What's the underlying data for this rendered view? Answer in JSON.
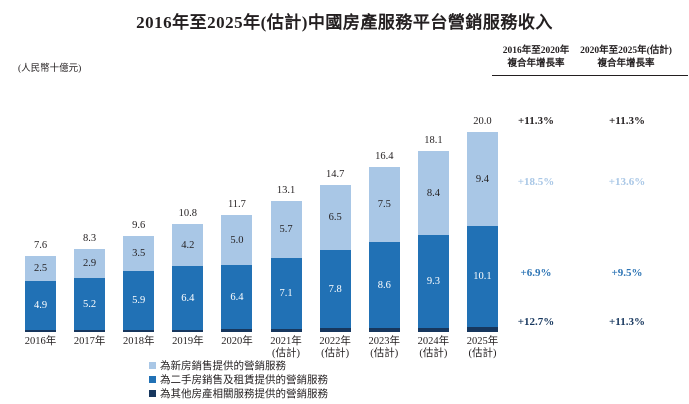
{
  "title": "2016年至2025年(估計)中國房產服務平台營銷服務收入",
  "unit_label": "(人民幣十億元)",
  "cagr_table": {
    "columns": [
      {
        "line1": "2016年至2020年",
        "line2": "複合年增長率"
      },
      {
        "line1": "2020年至2025年(估計)",
        "line2": "複合年增長率"
      }
    ],
    "rows": [
      {
        "name": "total",
        "values": [
          "+11.3%",
          "+11.3%"
        ],
        "color": "#231f20"
      },
      {
        "name": "new-home-marketing",
        "values": [
          "+18.5%",
          "+13.6%"
        ],
        "color": "#a9c7e6"
      },
      {
        "name": "secondary-home-marketing",
        "values": [
          "+6.9%",
          "+9.5%"
        ],
        "color": "#2e75b5"
      },
      {
        "name": "other-property-marketing",
        "values": [
          "+12.7%",
          "+11.3%"
        ],
        "color": "#17375e"
      }
    ]
  },
  "chart_data": {
    "type": "bar",
    "stacked": true,
    "title": "2016年至2025年(估計)中國房產服務平台營銷服務收入",
    "unit": "人民幣十億元",
    "ylim": [
      0,
      20
    ],
    "grid": false,
    "legend_position": "bottom",
    "categories": [
      {
        "label": "2016年",
        "sub": ""
      },
      {
        "label": "2017年",
        "sub": ""
      },
      {
        "label": "2018年",
        "sub": ""
      },
      {
        "label": "2019年",
        "sub": ""
      },
      {
        "label": "2020年",
        "sub": ""
      },
      {
        "label": "2021年",
        "sub": "(估計)"
      },
      {
        "label": "2022年",
        "sub": "(估計)"
      },
      {
        "label": "2023年",
        "sub": "(估計)"
      },
      {
        "label": "2024年",
        "sub": "(估計)"
      },
      {
        "label": "2025年",
        "sub": "(估計)"
      }
    ],
    "series": [
      {
        "name": "為其他房產相關服務提供的營銷服務",
        "color": "#17375e",
        "label_color": "#ffffff",
        "values": [
          0.2,
          0.2,
          0.2,
          0.2,
          0.3,
          0.3,
          0.4,
          0.4,
          0.4,
          0.5
        ]
      },
      {
        "name": "為二手房銷售及租賃提供的營銷服務",
        "color": "#2171b5",
        "label_color": "#ffffff",
        "values": [
          4.9,
          5.2,
          5.9,
          6.4,
          6.4,
          7.1,
          7.8,
          8.6,
          9.3,
          10.1
        ]
      },
      {
        "name": "為新房銷售提供的營銷服務",
        "color": "#a9c7e6",
        "label_color": "#231f20",
        "values": [
          2.5,
          2.9,
          3.5,
          4.2,
          5.0,
          5.7,
          6.5,
          7.5,
          8.4,
          9.4
        ]
      }
    ],
    "totals": [
      7.6,
      8.3,
      9.6,
      10.8,
      11.7,
      13.1,
      14.7,
      16.4,
      18.1,
      20.0
    ]
  },
  "legend": [
    {
      "label": "為新房銷售提供的營銷服務",
      "color": "#a9c7e6"
    },
    {
      "label": "為二手房銷售及租賃提供的營銷服務",
      "color": "#2171b5"
    },
    {
      "label": "為其他房產相關服務提供的營銷服務",
      "color": "#17375e"
    }
  ]
}
